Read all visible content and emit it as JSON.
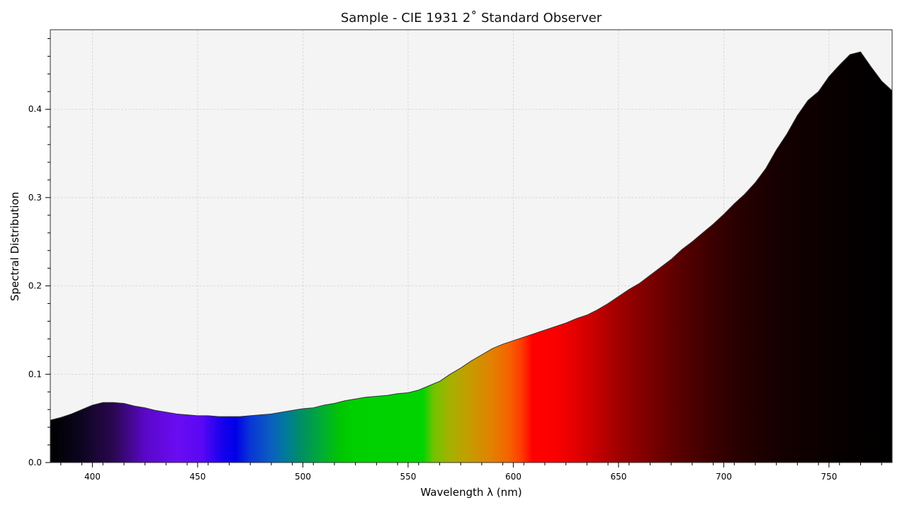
{
  "chart_data": {
    "type": "area",
    "title": "Sample - CIE 1931 2$^\\circ$ Standard Observer",
    "title_display": "Sample - CIE 1931 2˚ Standard Observer",
    "xlabel": "Wavelength λ (nm)",
    "ylabel": "Spectral Distribution",
    "xlim": [
      380,
      780
    ],
    "ylim": [
      0,
      0.49
    ],
    "xticks": [
      400,
      450,
      500,
      550,
      600,
      650,
      700,
      750
    ],
    "yticks": [
      0.0,
      0.1,
      0.2,
      0.3,
      0.4
    ],
    "grid": true,
    "background_color": "#f4f4f4",
    "fill": "spectrum-gradient",
    "outline_color": "#333333",
    "x": [
      380,
      385,
      390,
      395,
      400,
      405,
      410,
      415,
      420,
      425,
      430,
      435,
      440,
      445,
      450,
      455,
      460,
      465,
      470,
      475,
      480,
      485,
      490,
      495,
      500,
      505,
      510,
      515,
      520,
      525,
      530,
      535,
      540,
      545,
      550,
      555,
      560,
      565,
      570,
      575,
      580,
      585,
      590,
      595,
      600,
      605,
      610,
      615,
      620,
      625,
      630,
      635,
      640,
      645,
      650,
      655,
      660,
      665,
      670,
      675,
      680,
      685,
      690,
      695,
      700,
      705,
      710,
      715,
      720,
      725,
      730,
      735,
      740,
      745,
      750,
      755,
      760,
      765,
      770,
      775,
      780
    ],
    "y": [
      0.048,
      0.051,
      0.055,
      0.06,
      0.065,
      0.068,
      0.068,
      0.067,
      0.064,
      0.062,
      0.059,
      0.057,
      0.055,
      0.054,
      0.053,
      0.053,
      0.052,
      0.052,
      0.052,
      0.053,
      0.054,
      0.055,
      0.057,
      0.059,
      0.061,
      0.062,
      0.065,
      0.067,
      0.07,
      0.072,
      0.074,
      0.075,
      0.076,
      0.078,
      0.079,
      0.082,
      0.087,
      0.092,
      0.1,
      0.107,
      0.115,
      0.122,
      0.129,
      0.134,
      0.138,
      0.142,
      0.146,
      0.15,
      0.154,
      0.158,
      0.163,
      0.167,
      0.173,
      0.18,
      0.188,
      0.196,
      0.203,
      0.212,
      0.221,
      0.23,
      0.241,
      0.25,
      0.26,
      0.27,
      0.281,
      0.293,
      0.304,
      0.317,
      0.333,
      0.354,
      0.372,
      0.393,
      0.41,
      0.42,
      0.437,
      0.45,
      0.462,
      0.465,
      0.448,
      0.432,
      0.421
    ]
  }
}
